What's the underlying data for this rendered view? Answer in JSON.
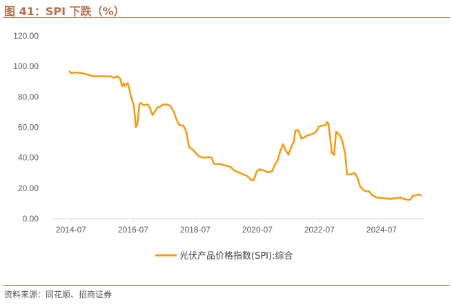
{
  "header": {
    "title": "图 41：SPI 下跌（%）"
  },
  "footer": {
    "source": "资料来源：同花顺、招商证券"
  },
  "chart_data": {
    "type": "line",
    "title": "",
    "xlabel": "",
    "ylabel": "",
    "ylim": [
      0,
      120
    ],
    "xlim": [
      "2013-11-16",
      "2025-11-17"
    ],
    "y_ticks": [
      "0.00",
      "20.00",
      "40.00",
      "60.00",
      "80.00",
      "100.00",
      "120.00"
    ],
    "x_ticks": [
      "2014-07",
      "2016-07",
      "2018-07",
      "2020-07",
      "2022-07",
      "2024-07"
    ],
    "grid": false,
    "legend_position": "bottom",
    "series": [
      {
        "name": "光伏产品价格指数(SPI):综合",
        "color": "#f39c12",
        "points": [
          [
            "2014-06-07",
            97
          ],
          [
            "2014-07-01",
            95.5
          ],
          [
            "2014-08-11",
            96
          ],
          [
            "2014-11-16",
            95.5
          ],
          [
            "2015-03-18",
            93.5
          ],
          [
            "2015-10-07",
            93.5
          ],
          [
            "2015-11-16",
            92.5
          ],
          [
            "2015-12-27",
            93.5
          ],
          [
            "2016-01-29",
            92
          ],
          [
            "2016-02-22",
            87
          ],
          [
            "2016-03-09",
            89
          ],
          [
            "2016-03-25",
            87
          ],
          [
            "2016-04-27",
            89
          ],
          [
            "2016-05-13",
            86
          ],
          [
            "2016-06-06",
            80
          ],
          [
            "2016-07-09",
            74
          ],
          [
            "2016-08-02",
            60
          ],
          [
            "2016-08-19",
            62
          ],
          [
            "2016-09-12",
            75
          ],
          [
            "2016-09-28",
            76
          ],
          [
            "2016-10-31",
            74.5
          ],
          [
            "2016-12-18",
            75
          ],
          [
            "2017-01-12",
            73
          ],
          [
            "2017-02-13",
            68
          ],
          [
            "2017-03-10",
            70
          ],
          [
            "2017-04-11",
            73
          ],
          [
            "2017-05-13",
            73.5
          ],
          [
            "2017-06-15",
            75
          ],
          [
            "2017-08-11",
            75
          ],
          [
            "2017-09-12",
            74
          ],
          [
            "2017-10-23",
            70
          ],
          [
            "2017-11-24",
            65
          ],
          [
            "2017-12-27",
            61.5
          ],
          [
            "2018-02-14",
            61
          ],
          [
            "2018-03-18",
            57
          ],
          [
            "2018-04-20",
            47
          ],
          [
            "2018-06-07",
            45
          ],
          [
            "2018-08-11",
            41
          ],
          [
            "2018-10-15",
            40
          ],
          [
            "2018-12-19",
            40.5
          ],
          [
            "2019-01-12",
            40
          ],
          [
            "2019-02-06",
            36
          ],
          [
            "2019-04-12",
            36
          ],
          [
            "2019-06-16",
            35
          ],
          [
            "2019-08-20",
            34
          ],
          [
            "2019-10-07",
            31.5
          ],
          [
            "2019-12-11",
            30
          ],
          [
            "2020-03-02",
            28
          ],
          [
            "2020-04-19",
            25.5
          ],
          [
            "2020-05-22",
            25.5
          ],
          [
            "2020-06-23",
            31
          ],
          [
            "2020-07-26",
            32.5
          ],
          [
            "2020-09-21",
            31.5
          ],
          [
            "2020-10-31",
            30.5
          ],
          [
            "2020-12-19",
            31
          ],
          [
            "2021-01-20",
            35
          ],
          [
            "2021-02-22",
            38
          ],
          [
            "2021-03-26",
            44
          ],
          [
            "2021-04-28",
            49
          ],
          [
            "2021-06-07",
            44
          ],
          [
            "2021-07-02",
            42
          ],
          [
            "2021-08-03",
            47
          ],
          [
            "2021-09-05",
            51
          ],
          [
            "2021-09-21",
            58
          ],
          [
            "2021-10-23",
            58
          ],
          [
            "2021-11-17",
            55
          ],
          [
            "2021-12-03",
            52.5
          ],
          [
            "2022-02-06",
            54.5
          ],
          [
            "2022-04-28",
            56
          ],
          [
            "2022-05-23",
            57
          ],
          [
            "2022-06-24",
            60.5
          ],
          [
            "2022-07-27",
            61
          ],
          [
            "2022-09-13",
            61.5
          ],
          [
            "2022-09-29",
            63.5
          ],
          [
            "2022-10-16",
            62
          ],
          [
            "2022-11-25",
            43
          ],
          [
            "2022-12-20",
            42
          ],
          [
            "2023-01-13",
            57
          ],
          [
            "2023-02-23",
            55
          ],
          [
            "2023-03-27",
            51
          ],
          [
            "2023-04-29",
            43
          ],
          [
            "2023-05-23",
            29
          ],
          [
            "2023-06-24",
            29
          ],
          [
            "2023-08-20",
            30
          ],
          [
            "2023-09-22",
            27
          ],
          [
            "2023-10-24",
            21
          ],
          [
            "2023-11-26",
            19
          ],
          [
            "2023-12-28",
            18
          ],
          [
            "2024-02-07",
            18
          ],
          [
            "2024-03-02",
            16
          ],
          [
            "2024-04-28",
            14
          ],
          [
            "2024-07-18",
            13.5
          ],
          [
            "2024-10-07",
            13
          ],
          [
            "2024-12-28",
            13.5
          ],
          [
            "2025-02-06",
            14
          ],
          [
            "2025-03-19",
            13
          ],
          [
            "2025-04-28",
            12.5
          ],
          [
            "2025-06-08",
            12.5
          ],
          [
            "2025-07-02",
            15
          ],
          [
            "2025-08-12",
            15.5
          ],
          [
            "2025-09-13",
            16
          ],
          [
            "2025-10-16",
            15
          ]
        ]
      }
    ]
  }
}
